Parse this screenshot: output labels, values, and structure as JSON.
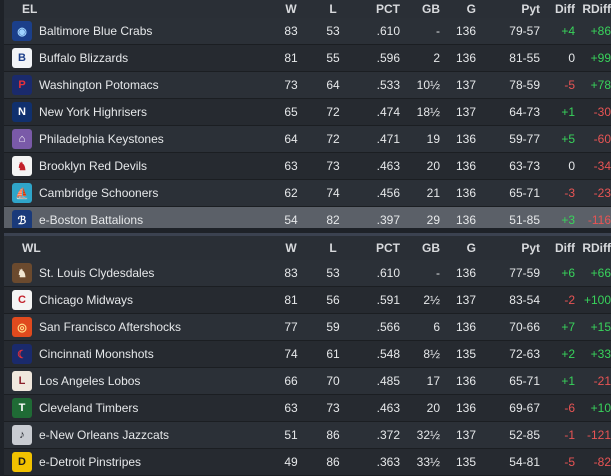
{
  "el": {
    "title": "EL",
    "columns": {
      "w": "W",
      "l": "L",
      "pct": "PCT",
      "gb": "GB",
      "g": "G",
      "pyt": "Pyt",
      "diff": "Diff",
      "rdiff": "RDiff"
    },
    "rows": [
      {
        "team": "Baltimore Blue Crabs",
        "w": "83",
        "l": "53",
        "pct": ".610",
        "gb": "-",
        "g": "136",
        "pyt": "79-57",
        "diff": "+4",
        "rdiff": "+86",
        "logo": "crab",
        "logo_bg": "#1b3f8a",
        "logo_fg": "#9fd3ff",
        "logo_glyph": "◉"
      },
      {
        "team": "Buffalo Blizzards",
        "w": "81",
        "l": "55",
        "pct": ".596",
        "gb": "2",
        "g": "136",
        "pyt": "81-55",
        "diff": "0",
        "rdiff": "+99",
        "logo": "blizzard",
        "logo_bg": "#f2f4f7",
        "logo_fg": "#1d3f8a",
        "logo_glyph": "B"
      },
      {
        "team": "Washington Potomacs",
        "w": "73",
        "l": "64",
        "pct": ".533",
        "gb": "10½",
        "g": "137",
        "pyt": "78-59",
        "diff": "-5",
        "rdiff": "+78",
        "logo": "potomacs",
        "logo_bg": "#1a2a6c",
        "logo_fg": "#e8313a",
        "logo_glyph": "P"
      },
      {
        "team": "New York Highrisers",
        "w": "65",
        "l": "72",
        "pct": ".474",
        "gb": "18½",
        "g": "137",
        "pyt": "64-73",
        "diff": "+1",
        "rdiff": "-30",
        "logo": "highrisers",
        "logo_bg": "#10306e",
        "logo_fg": "#ffffff",
        "logo_glyph": "N"
      },
      {
        "team": "Philadelphia Keystones",
        "w": "64",
        "l": "72",
        "pct": ".471",
        "gb": "19",
        "g": "136",
        "pyt": "59-77",
        "diff": "+5",
        "rdiff": "-60",
        "logo": "keystones",
        "logo_bg": "#7a5aa8",
        "logo_fg": "#ffffff",
        "logo_glyph": "⌂"
      },
      {
        "team": "Brooklyn Red Devils",
        "w": "63",
        "l": "73",
        "pct": ".463",
        "gb": "20",
        "g": "136",
        "pyt": "63-73",
        "diff": "0",
        "rdiff": "-34",
        "logo": "red-devils",
        "logo_bg": "#f4f4f4",
        "logo_fg": "#c21f2a",
        "logo_glyph": "♞"
      },
      {
        "team": "Cambridge Schooners",
        "w": "62",
        "l": "74",
        "pct": ".456",
        "gb": "21",
        "g": "136",
        "pyt": "65-71",
        "diff": "-3",
        "rdiff": "-23",
        "logo": "schooners",
        "logo_bg": "#2fa5c9",
        "logo_fg": "#ffffff",
        "logo_glyph": "⛵"
      },
      {
        "team": "e-Boston Battalions",
        "w": "54",
        "l": "82",
        "pct": ".397",
        "gb": "29",
        "g": "136",
        "pyt": "51-85",
        "diff": "+3",
        "rdiff": "-116",
        "logo": "battalions",
        "logo_bg": "#1a3a7a",
        "logo_fg": "#ffffff",
        "logo_glyph": "ℬ"
      }
    ]
  },
  "wl": {
    "title": "WL",
    "columns": {
      "w": "W",
      "l": "L",
      "pct": "PCT",
      "gb": "GB",
      "g": "G",
      "pyt": "Pyt",
      "diff": "Diff",
      "rdiff": "RDiff"
    },
    "rows": [
      {
        "team": "St. Louis Clydesdales",
        "w": "83",
        "l": "53",
        "pct": ".610",
        "gb": "-",
        "g": "136",
        "pyt": "77-59",
        "diff": "+6",
        "rdiff": "+66",
        "logo": "clydesdales",
        "logo_bg": "#6b4a2e",
        "logo_fg": "#f0e6d2",
        "logo_glyph": "♞"
      },
      {
        "team": "Chicago Midways",
        "w": "81",
        "l": "56",
        "pct": ".591",
        "gb": "2½",
        "g": "137",
        "pyt": "83-54",
        "diff": "-2",
        "rdiff": "+100",
        "logo": "midways",
        "logo_bg": "#f4f4f4",
        "logo_fg": "#c21f2a",
        "logo_glyph": "C"
      },
      {
        "team": "San Francisco Aftershocks",
        "w": "77",
        "l": "59",
        "pct": ".566",
        "gb": "6",
        "g": "136",
        "pyt": "70-66",
        "diff": "+7",
        "rdiff": "+15",
        "logo": "aftershocks",
        "logo_bg": "#e04a1e",
        "logo_fg": "#ffe08a",
        "logo_glyph": "◎"
      },
      {
        "team": "Cincinnati Moonshots",
        "w": "74",
        "l": "61",
        "pct": ".548",
        "gb": "8½",
        "g": "135",
        "pyt": "72-63",
        "diff": "+2",
        "rdiff": "+33",
        "logo": "moonshots",
        "logo_bg": "#1a2a6c",
        "logo_fg": "#e8313a",
        "logo_glyph": "☾"
      },
      {
        "team": "Los Angeles Lobos",
        "w": "66",
        "l": "70",
        "pct": ".485",
        "gb": "17",
        "g": "136",
        "pyt": "65-71",
        "diff": "+1",
        "rdiff": "-21",
        "logo": "lobos",
        "logo_bg": "#f0e8de",
        "logo_fg": "#8a1f2a",
        "logo_glyph": "L"
      },
      {
        "team": "Cleveland Timbers",
        "w": "63",
        "l": "73",
        "pct": ".463",
        "gb": "20",
        "g": "136",
        "pyt": "69-67",
        "diff": "-6",
        "rdiff": "+10",
        "logo": "timbers",
        "logo_bg": "#1f6b35",
        "logo_fg": "#ffffff",
        "logo_glyph": "T"
      },
      {
        "team": "e-New Orleans Jazzcats",
        "w": "51",
        "l": "86",
        "pct": ".372",
        "gb": "32½",
        "g": "137",
        "pyt": "52-85",
        "diff": "-1",
        "rdiff": "-121",
        "logo": "jazzcats",
        "logo_bg": "#c9ccd2",
        "logo_fg": "#20242a",
        "logo_glyph": "♪"
      },
      {
        "team": "e-Detroit Pinstripes",
        "w": "49",
        "l": "86",
        "pct": ".363",
        "gb": "33½",
        "g": "135",
        "pyt": "54-81",
        "diff": "-5",
        "rdiff": "-82",
        "logo": "pinstripes",
        "logo_bg": "#f2c200",
        "logo_fg": "#1a1a1a",
        "logo_glyph": "D"
      }
    ]
  },
  "highlighted_row": "e-Boston Battalions",
  "colors": {
    "positive": "#38d35b",
    "negative": "#e85454",
    "neutral": "#e6e8ea",
    "highlight": "#5b6068"
  }
}
